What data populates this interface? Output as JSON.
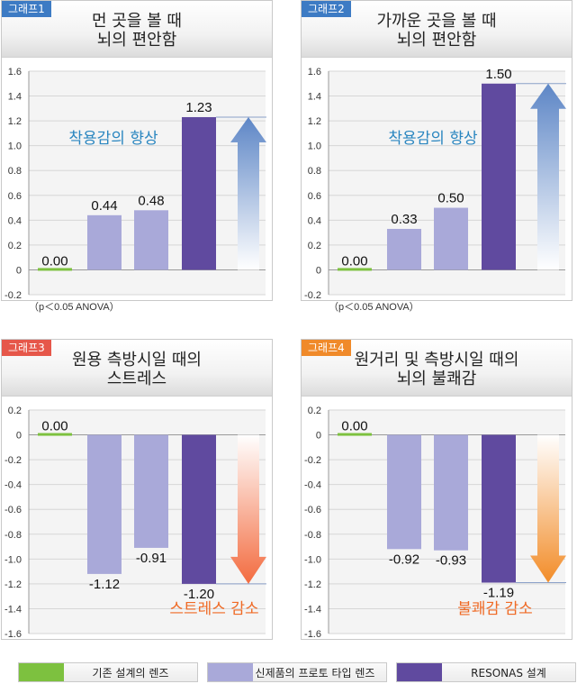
{
  "colors": {
    "green": "#7dc13f",
    "lavender": "#a9a9d9",
    "purple": "#604a9f",
    "tag_blue": "#3d7bc4",
    "tag_red": "#e6574a",
    "tag_orange": "#f08a2a",
    "improve_text": "#2a86c0",
    "reduce_text": "#ef6a25"
  },
  "legend": [
    {
      "label": "기존 설계의 렌즈",
      "color": "#7dc13f"
    },
    {
      "label": "신제품의 프로토 타입 렌즈",
      "color": "#a9a9d9"
    },
    {
      "label": "RESONAS 설계",
      "color": "#604a9f"
    }
  ],
  "chart_data": [
    {
      "type": "bar",
      "tag": "그래프1",
      "tag_color": "#3d7bc4",
      "title_lines": [
        "먼 곳을 볼 때",
        "뇌의 편안함"
      ],
      "categories": [
        "기존 설계의 렌즈",
        "신제품의 프로토 타입 렌즈",
        "신제품의 프로토 타입 렌즈",
        "RESONAS 설계"
      ],
      "values": [
        0.0,
        0.44,
        0.48,
        1.23
      ],
      "labels": [
        "0.00",
        "0.44",
        "0.48",
        "1.23"
      ],
      "ylim": [
        -0.2,
        1.6
      ],
      "yticks": [
        "-0.2",
        "0",
        "0.2",
        "0.4",
        "0.6",
        "0.8",
        "1.0",
        "1.2",
        "1.4",
        "1.6"
      ],
      "arrow": "up",
      "annotation": "착용감의 향상",
      "note": "（p＜0.05 ANOVA）"
    },
    {
      "type": "bar",
      "tag": "그래프2",
      "tag_color": "#3d7bc4",
      "title_lines": [
        "가까운 곳을 볼 때",
        "뇌의 편안함"
      ],
      "categories": [
        "기존 설계의 렌즈",
        "신제품의 프로토 타입 렌즈",
        "신제품의 프로토 타입 렌즈",
        "RESONAS 설계"
      ],
      "values": [
        0.0,
        0.33,
        0.5,
        1.5
      ],
      "labels": [
        "0.00",
        "0.33",
        "0.50",
        "1.50"
      ],
      "ylim": [
        -0.2,
        1.6
      ],
      "yticks": [
        "-0.2",
        "0",
        "0.2",
        "0.4",
        "0.6",
        "0.8",
        "1.0",
        "1.2",
        "1.4",
        "1.6"
      ],
      "arrow": "up",
      "annotation": "착용감의 향상",
      "note": "（p＜0.05 ANOVA）"
    },
    {
      "type": "bar",
      "tag": "그래프3",
      "tag_color": "#e6574a",
      "title_lines": [
        "원용 측방시일 때의",
        "스트레스"
      ],
      "categories": [
        "기존 설계의 렌즈",
        "신제품의 프로토 타입 렌즈",
        "신제품의 프로토 타입 렌즈",
        "RESONAS 설계"
      ],
      "values": [
        0.0,
        -1.12,
        -0.91,
        -1.2
      ],
      "labels": [
        "0.00",
        "-1.12",
        "-0.91",
        "-1.20"
      ],
      "ylim": [
        -1.6,
        0.2
      ],
      "yticks": [
        "-1.6",
        "-1.4",
        "-1.2",
        "-1.0",
        "-0.8",
        "-0.6",
        "-0.4",
        "-0.2",
        "0",
        "0.2"
      ],
      "arrow": "down",
      "annotation": "스트레스 감소",
      "note": ""
    },
    {
      "type": "bar",
      "tag": "그래프4",
      "tag_color": "#f08a2a",
      "title_lines": [
        "원거리 및 측방시일 때의",
        "뇌의 불쾌감"
      ],
      "categories": [
        "기존 설계의 렌즈",
        "신제품의 프로토 타입 렌즈",
        "신제품의 프로토 타입 렌즈",
        "RESONAS 설계"
      ],
      "values": [
        0.0,
        -0.92,
        -0.93,
        -1.19
      ],
      "labels": [
        "0.00",
        "-0.92",
        "-0.93",
        "-1.19"
      ],
      "ylim": [
        -1.6,
        0.2
      ],
      "yticks": [
        "-1.6",
        "-1.4",
        "-1.2",
        "-1.0",
        "-0.8",
        "-0.6",
        "-0.4",
        "-0.2",
        "0",
        "0.2"
      ],
      "arrow": "down",
      "annotation": "불쾌감 감소",
      "note": ""
    }
  ]
}
